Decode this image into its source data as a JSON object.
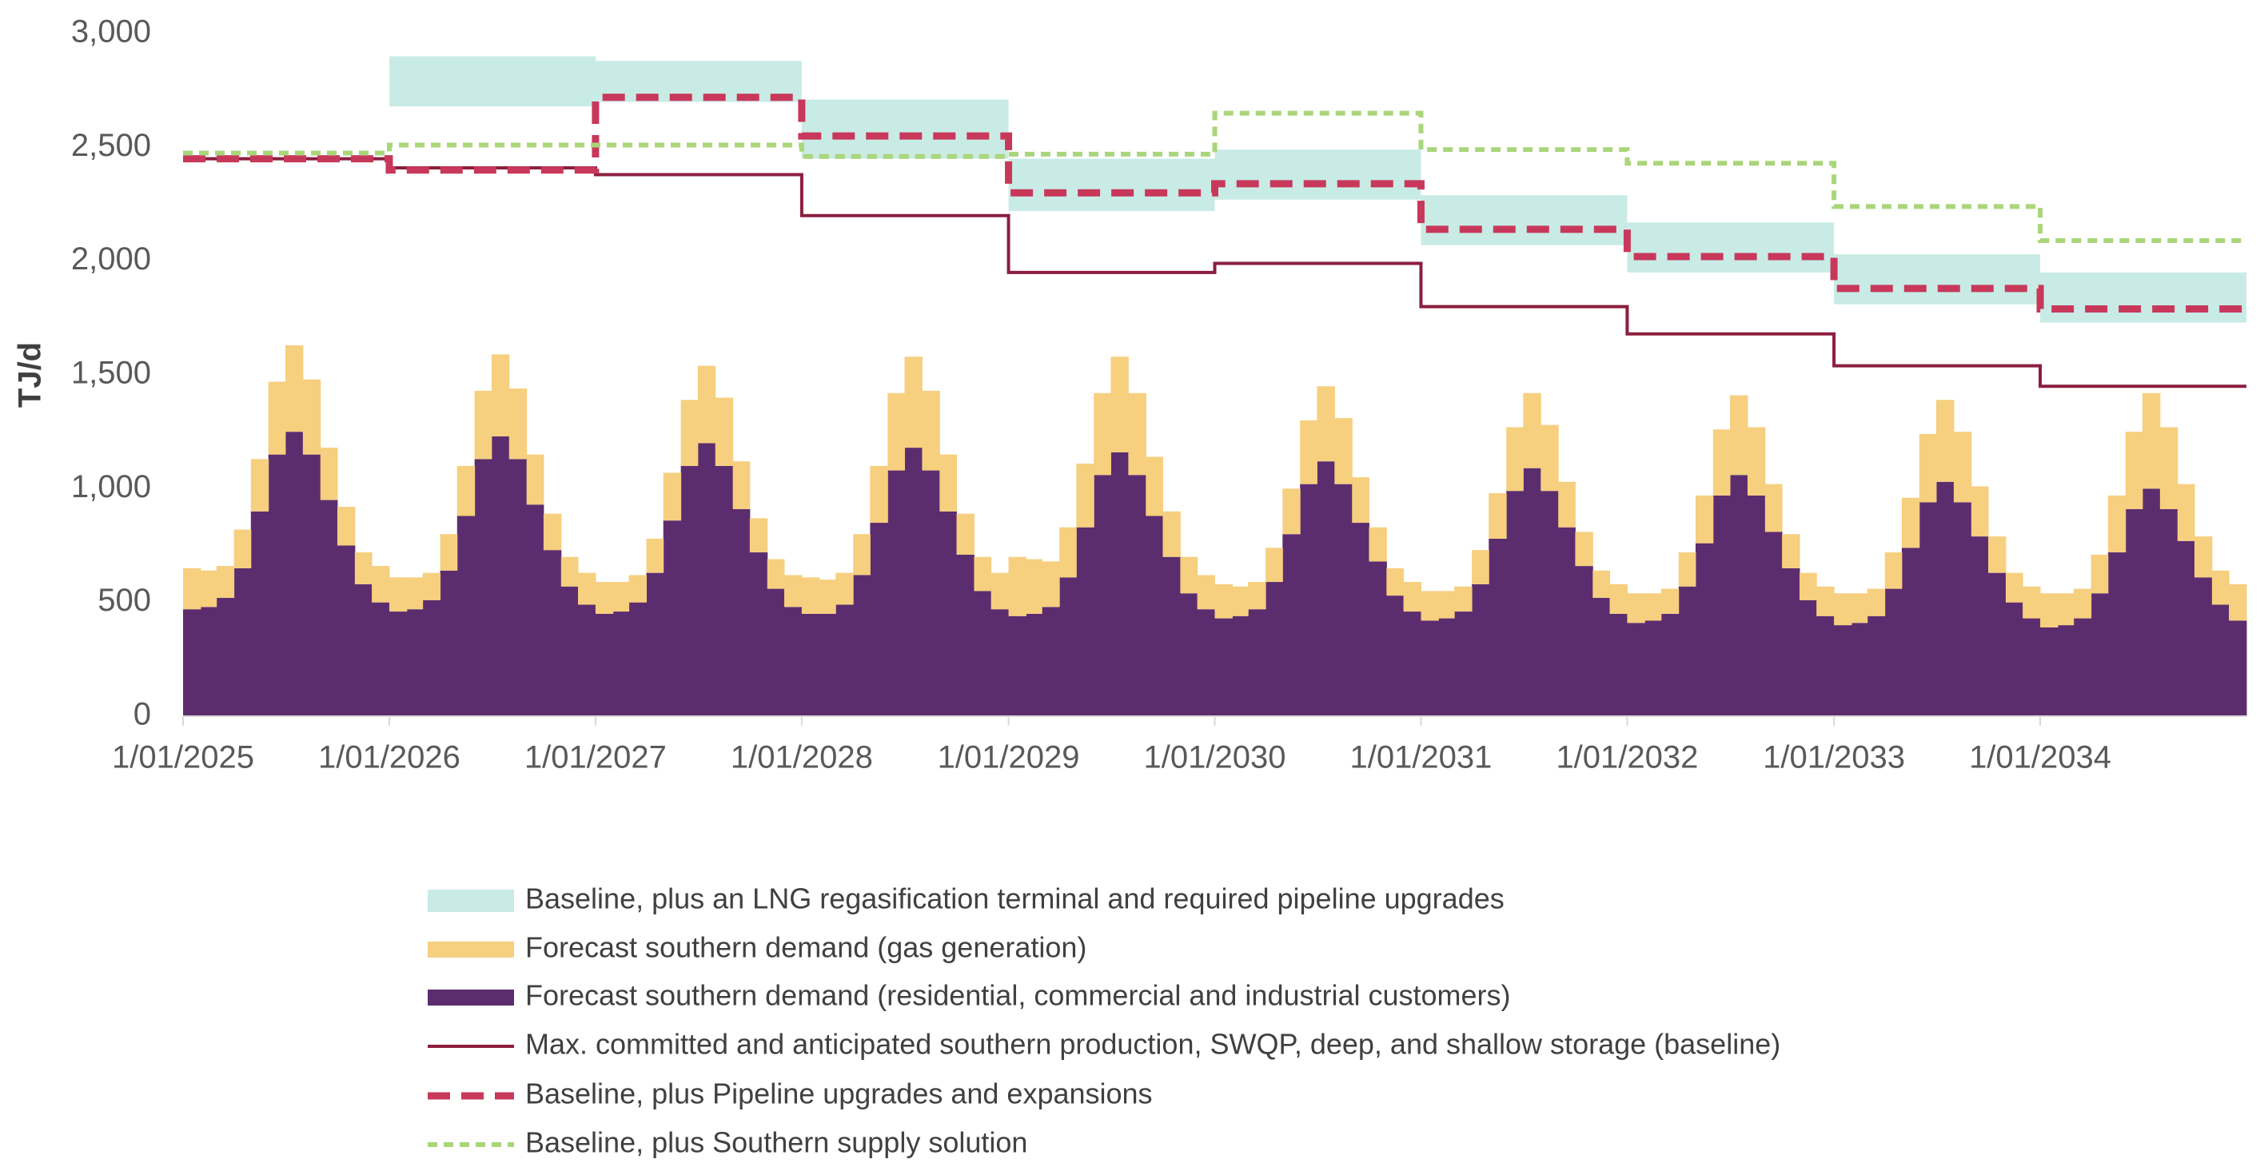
{
  "chart_data": {
    "type": "combo",
    "ylabel": "TJ/d",
    "xlim": [
      "1/01/2025",
      "1/01/2035"
    ],
    "xticks": [
      "1/01/2025",
      "1/01/2026",
      "1/01/2027",
      "1/01/2028",
      "1/01/2029",
      "1/01/2030",
      "1/01/2031",
      "1/01/2032",
      "1/01/2033",
      "1/01/2034"
    ],
    "ylim": [
      0,
      3000
    ],
    "yticks": [
      0,
      500,
      {
        "value": 1000,
        "label": "1,000"
      },
      {
        "value": 1500,
        "label": "1,500"
      },
      {
        "value": 2000,
        "label": "2,000"
      },
      {
        "value": 2500,
        "label": "2,500"
      },
      {
        "value": 3000,
        "label": "3,000"
      }
    ],
    "series": [
      {
        "name": "Baseline, plus an LNG regasification terminal and required pipeline upgrades",
        "type": "band",
        "color": "#c9ebe6",
        "x": [
          "1/01/2025",
          "1/01/2026",
          "1/01/2027",
          "1/01/2028",
          "1/01/2029",
          "1/01/2030",
          "1/01/2031",
          "1/01/2032",
          "1/01/2033",
          "1/01/2034"
        ],
        "low": [
          null,
          2680,
          2700,
          2450,
          2220,
          2270,
          2070,
          1950,
          1810,
          1730
        ],
        "high": [
          null,
          2900,
          2880,
          2710,
          2450,
          2490,
          2290,
          2170,
          2030,
          1950
        ]
      },
      {
        "name": "Forecast southern demand (gas generation)",
        "type": "bar",
        "color": "#f6cf7f",
        "x": [
          "1/01/2025",
          "1/02/2025",
          "1/03/2025",
          "1/04/2025",
          "1/05/2025",
          "1/06/2025",
          "1/07/2025",
          "1/08/2025",
          "1/09/2025",
          "1/10/2025",
          "1/11/2025",
          "1/12/2025",
          "1/01/2026",
          "1/02/2026",
          "1/03/2026",
          "1/04/2026",
          "1/05/2026",
          "1/06/2026",
          "1/07/2026",
          "1/08/2026",
          "1/09/2026",
          "1/10/2026",
          "1/11/2026",
          "1/12/2026",
          "1/01/2027",
          "1/02/2027",
          "1/03/2027",
          "1/04/2027",
          "1/05/2027",
          "1/06/2027",
          "1/07/2027",
          "1/08/2027",
          "1/09/2027",
          "1/10/2027",
          "1/11/2027",
          "1/12/2027",
          "1/01/2028",
          "1/02/2028",
          "1/03/2028",
          "1/04/2028",
          "1/05/2028",
          "1/06/2028",
          "1/07/2028",
          "1/08/2028",
          "1/09/2028",
          "1/10/2028",
          "1/11/2028",
          "1/12/2028",
          "1/01/2029",
          "1/02/2029",
          "1/03/2029",
          "1/04/2029",
          "1/05/2029",
          "1/06/2029",
          "1/07/2029",
          "1/08/2029",
          "1/09/2029",
          "1/10/2029",
          "1/11/2029",
          "1/12/2029",
          "1/01/2030",
          "1/02/2030",
          "1/03/2030",
          "1/04/2030",
          "1/05/2030",
          "1/06/2030",
          "1/07/2030",
          "1/08/2030",
          "1/09/2030",
          "1/10/2030",
          "1/11/2030",
          "1/12/2030",
          "1/01/2031",
          "1/02/2031",
          "1/03/2031",
          "1/04/2031",
          "1/05/2031",
          "1/06/2031",
          "1/07/2031",
          "1/08/2031",
          "1/09/2031",
          "1/10/2031",
          "1/11/2031",
          "1/12/2031",
          "1/01/2032",
          "1/02/2032",
          "1/03/2032",
          "1/04/2032",
          "1/05/2032",
          "1/06/2032",
          "1/07/2032",
          "1/08/2032",
          "1/09/2032",
          "1/10/2032",
          "1/11/2032",
          "1/12/2032",
          "1/01/2033",
          "1/02/2033",
          "1/03/2033",
          "1/04/2033",
          "1/05/2033",
          "1/06/2033",
          "1/07/2033",
          "1/08/2033",
          "1/09/2033",
          "1/10/2033",
          "1/11/2033",
          "1/12/2033",
          "1/01/2034",
          "1/02/2034",
          "1/03/2034",
          "1/04/2034",
          "1/05/2034",
          "1/06/2034",
          "1/07/2034",
          "1/08/2034",
          "1/09/2034",
          "1/10/2034",
          "1/11/2034",
          "1/12/2034"
        ],
        "values": [
          180,
          160,
          140,
          170,
          230,
          320,
          380,
          330,
          230,
          170,
          140,
          160,
          150,
          140,
          120,
          160,
          220,
          300,
          360,
          310,
          220,
          160,
          130,
          140,
          140,
          130,
          120,
          150,
          210,
          290,
          340,
          300,
          210,
          150,
          130,
          140,
          160,
          150,
          140,
          180,
          250,
          340,
          400,
          350,
          250,
          180,
          150,
          160,
          260,
          240,
          200,
          220,
          280,
          360,
          420,
          360,
          260,
          200,
          160,
          150,
          150,
          130,
          120,
          150,
          200,
          280,
          330,
          290,
          200,
          150,
          120,
          130,
          130,
          120,
          110,
          150,
          200,
          280,
          330,
          290,
          200,
          150,
          120,
          130,
          130,
          120,
          110,
          150,
          210,
          290,
          350,
          300,
          210,
          150,
          120,
          130,
          140,
          130,
          120,
          160,
          220,
          300,
          360,
          310,
          220,
          160,
          130,
          140,
          150,
          140,
          130,
          170,
          250,
          340,
          420,
          360,
          250,
          180,
          150,
          160
        ]
      },
      {
        "name": "Forecast southern demand (residential, commercial and industrial customers)",
        "type": "bar",
        "color": "#5c2d6e",
        "x": [
          "1/01/2025",
          "1/02/2025",
          "1/03/2025",
          "1/04/2025",
          "1/05/2025",
          "1/06/2025",
          "1/07/2025",
          "1/08/2025",
          "1/09/2025",
          "1/10/2025",
          "1/11/2025",
          "1/12/2025",
          "1/01/2026",
          "1/02/2026",
          "1/03/2026",
          "1/04/2026",
          "1/05/2026",
          "1/06/2026",
          "1/07/2026",
          "1/08/2026",
          "1/09/2026",
          "1/10/2026",
          "1/11/2026",
          "1/12/2026",
          "1/01/2027",
          "1/02/2027",
          "1/03/2027",
          "1/04/2027",
          "1/05/2027",
          "1/06/2027",
          "1/07/2027",
          "1/08/2027",
          "1/09/2027",
          "1/10/2027",
          "1/11/2027",
          "1/12/2027",
          "1/01/2028",
          "1/02/2028",
          "1/03/2028",
          "1/04/2028",
          "1/05/2028",
          "1/06/2028",
          "1/07/2028",
          "1/08/2028",
          "1/09/2028",
          "1/10/2028",
          "1/11/2028",
          "1/12/2028",
          "1/01/2029",
          "1/02/2029",
          "1/03/2029",
          "1/04/2029",
          "1/05/2029",
          "1/06/2029",
          "1/07/2029",
          "1/08/2029",
          "1/09/2029",
          "1/10/2029",
          "1/11/2029",
          "1/12/2029",
          "1/01/2030",
          "1/02/2030",
          "1/03/2030",
          "1/04/2030",
          "1/05/2030",
          "1/06/2030",
          "1/07/2030",
          "1/08/2030",
          "1/09/2030",
          "1/10/2030",
          "1/11/2030",
          "1/12/2030",
          "1/01/2031",
          "1/02/2031",
          "1/03/2031",
          "1/04/2031",
          "1/05/2031",
          "1/06/2031",
          "1/07/2031",
          "1/08/2031",
          "1/09/2031",
          "1/10/2031",
          "1/11/2031",
          "1/12/2031",
          "1/01/2032",
          "1/02/2032",
          "1/03/2032",
          "1/04/2032",
          "1/05/2032",
          "1/06/2032",
          "1/07/2032",
          "1/08/2032",
          "1/09/2032",
          "1/10/2032",
          "1/11/2032",
          "1/12/2032",
          "1/01/2033",
          "1/02/2033",
          "1/03/2033",
          "1/04/2033",
          "1/05/2033",
          "1/06/2033",
          "1/07/2033",
          "1/08/2033",
          "1/09/2033",
          "1/10/2033",
          "1/11/2033",
          "1/12/2033",
          "1/01/2034",
          "1/02/2034",
          "1/03/2034",
          "1/04/2034",
          "1/05/2034",
          "1/06/2034",
          "1/07/2034",
          "1/08/2034",
          "1/09/2034",
          "1/10/2034",
          "1/11/2034",
          "1/12/2034"
        ],
        "values": [
          470,
          480,
          520,
          650,
          900,
          1150,
          1250,
          1150,
          950,
          750,
          580,
          500,
          460,
          470,
          510,
          640,
          880,
          1130,
          1230,
          1130,
          930,
          730,
          570,
          490,
          450,
          460,
          500,
          630,
          860,
          1100,
          1200,
          1100,
          910,
          720,
          560,
          480,
          450,
          450,
          490,
          620,
          850,
          1080,
          1180,
          1080,
          900,
          710,
          550,
          470,
          440,
          450,
          480,
          610,
          830,
          1060,
          1160,
          1060,
          880,
          700,
          540,
          470,
          430,
          440,
          470,
          590,
          800,
          1020,
          1120,
          1020,
          850,
          680,
          530,
          460,
          420,
          430,
          460,
          580,
          780,
          990,
          1090,
          990,
          830,
          660,
          520,
          450,
          410,
          420,
          450,
          570,
          760,
          970,
          1060,
          970,
          810,
          650,
          510,
          440,
          400,
          410,
          440,
          560,
          740,
          940,
          1030,
          940,
          790,
          630,
          500,
          430,
          390,
          400,
          430,
          540,
          720,
          910,
          1000,
          910,
          770,
          610,
          490,
          420
        ]
      },
      {
        "name": "Max. committed and anticipated southern production, SWQP, deep, and shallow storage (baseline)",
        "type": "step",
        "color": "#8b1e3f",
        "line_style": "solid",
        "x": [
          "1/01/2025",
          "1/01/2026",
          "1/01/2027",
          "1/01/2028",
          "1/01/2029",
          "1/01/2030",
          "1/01/2031",
          "1/01/2032",
          "1/01/2033",
          "1/01/2034"
        ],
        "values": [
          2450,
          2410,
          2380,
          2200,
          1950,
          1990,
          1800,
          1680,
          1540,
          1450
        ]
      },
      {
        "name": "Baseline, plus Pipeline upgrades and expansions",
        "type": "step",
        "color": "#c8385a",
        "line_style": "dashed",
        "x": [
          "1/01/2025",
          "1/01/2026",
          "1/01/2027",
          "1/01/2028",
          "1/01/2029",
          "1/01/2030",
          "1/01/2031",
          "1/01/2032",
          "1/01/2033",
          "1/01/2034"
        ],
        "values": [
          2450,
          2400,
          2720,
          2550,
          2300,
          2340,
          2140,
          2020,
          1880,
          1790
        ]
      },
      {
        "name": "Baseline, plus Southern supply solution",
        "type": "step",
        "color": "#a9d67a",
        "line_style": "dotted",
        "x": [
          "1/01/2025",
          "1/01/2026",
          "1/01/2027",
          "1/01/2028",
          "1/01/2029",
          "1/01/2030",
          "1/01/2031",
          "1/01/2032",
          "1/01/2033",
          "1/01/2034"
        ],
        "values": [
          2475,
          2510,
          2510,
          2460,
          2470,
          2650,
          2490,
          2430,
          2240,
          2090
        ]
      }
    ]
  }
}
